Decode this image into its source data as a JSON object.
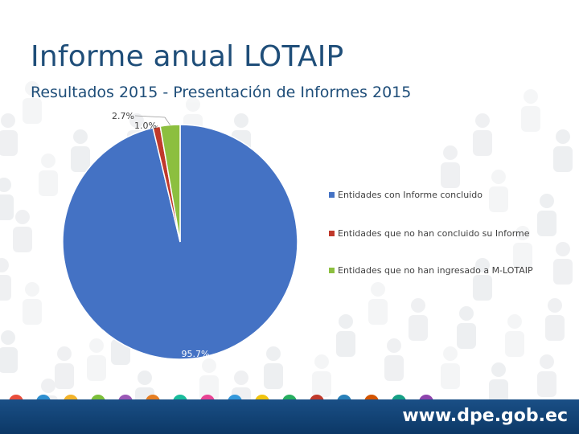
{
  "slide": {
    "title": "Informe anual LOTAIP",
    "subtitle": "Resultados 2015 - Presentación de Informes 2015",
    "footer_url": "www.dpe.gob.ec"
  },
  "chart_data": {
    "type": "pie",
    "title": "",
    "categories": [
      "Entidades con Informe concluido",
      "Entidades que no han concluido su Informe",
      "Entidades que no han ingresado a M-LOTAIP"
    ],
    "values": [
      95.7,
      1.0,
      2.7
    ],
    "labels": [
      "95.7%",
      "1.0%",
      "2.7%"
    ],
    "colors": [
      "#4472c4",
      "#c0392b",
      "#8cbf3f"
    ],
    "legend_position": "right"
  }
}
